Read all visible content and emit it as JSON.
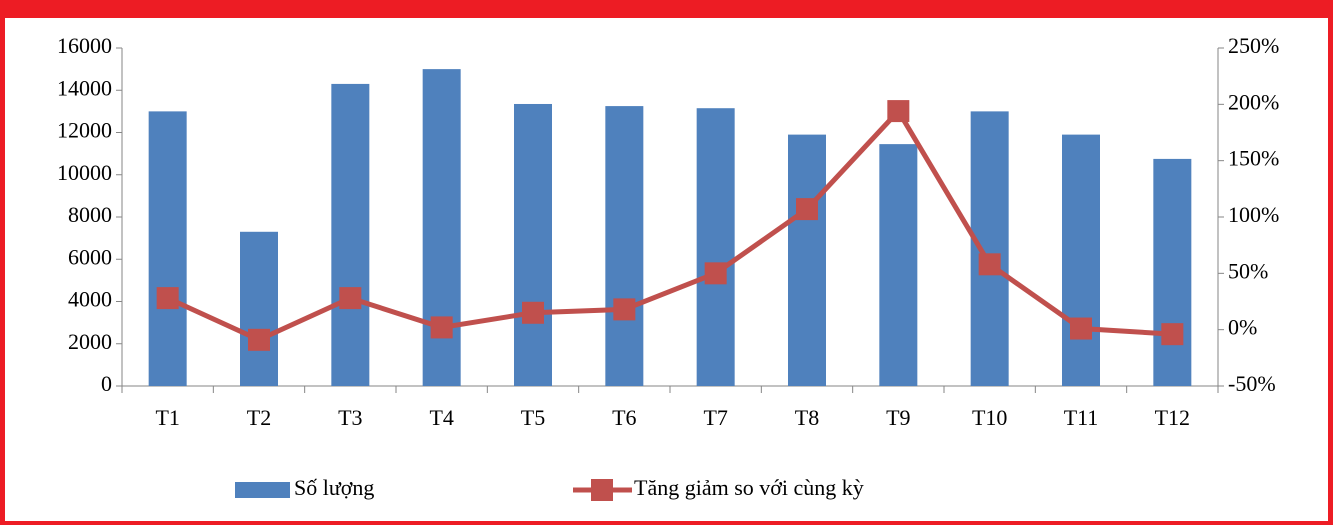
{
  "chart_data": {
    "type": "bar_line",
    "categories": [
      "T1",
      "T2",
      "T3",
      "T4",
      "T5",
      "T6",
      "T7",
      "T8",
      "T9",
      "T10",
      "T11",
      "T12"
    ],
    "series": [
      {
        "name": "Số lượng",
        "type": "bar",
        "color": "#4f81bd",
        "values": [
          13000,
          7300,
          14300,
          15000,
          13350,
          13250,
          13150,
          11900,
          11450,
          13000,
          11900,
          10750
        ]
      },
      {
        "name": "Tăng giảm so với cùng kỳ",
        "type": "line",
        "axis": "y2",
        "color": "#c0504d",
        "values": [
          28,
          -9,
          28,
          2,
          15,
          18,
          50,
          107,
          194,
          58,
          1,
          -4
        ]
      }
    ],
    "ylim": [
      0,
      16000
    ],
    "yticks": [
      0,
      2000,
      4000,
      6000,
      8000,
      10000,
      12000,
      14000,
      16000
    ],
    "y2lim": [
      -50,
      250
    ],
    "y2ticks": [
      {
        "value": -50,
        "label": "-50%"
      },
      {
        "value": 0,
        "label": "0%"
      },
      {
        "value": 50,
        "label": "50%"
      },
      {
        "value": 100,
        "label": "100%"
      },
      {
        "value": 150,
        "label": "150%"
      },
      {
        "value": 200,
        "label": "200%"
      },
      {
        "value": 250,
        "label": "250%"
      }
    ],
    "legend": "bottom"
  }
}
